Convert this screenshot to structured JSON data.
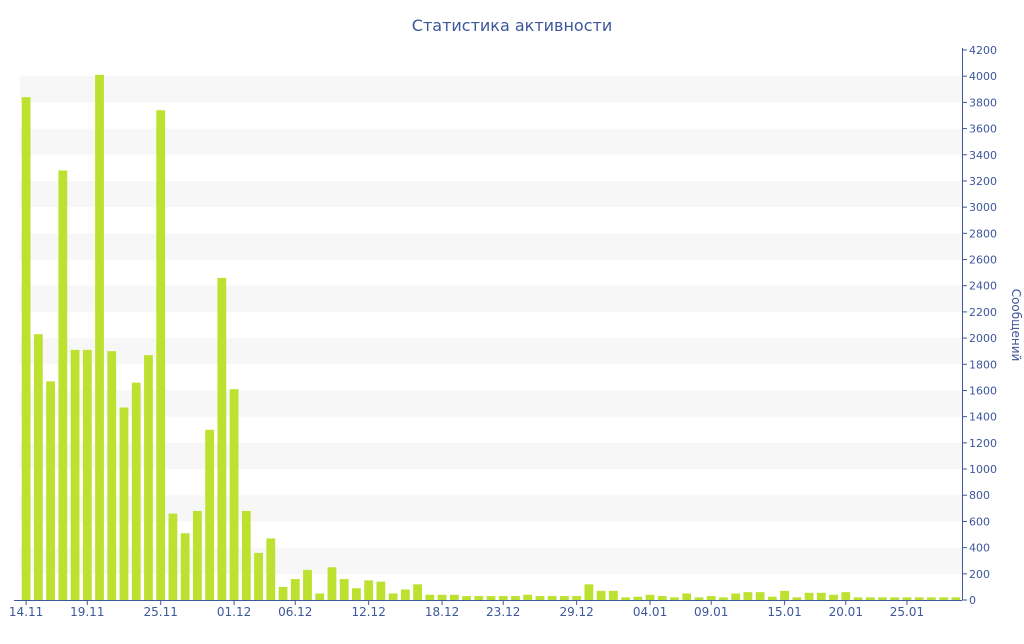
{
  "chart_data": {
    "type": "bar",
    "title": "Статистика активности",
    "ylabel": "Сообщений",
    "xlabel": "",
    "ylim": [
      0,
      4200
    ],
    "yticks": [
      0,
      200,
      400,
      600,
      800,
      1000,
      1200,
      1400,
      1600,
      1800,
      2000,
      2200,
      2400,
      2600,
      2800,
      3000,
      3200,
      3400,
      3600,
      3800,
      4000,
      4200
    ],
    "y_axis_position": "right",
    "grid": "alternating horizontal bands",
    "legend": "none",
    "bar_color": "#bde131",
    "axis_color": "#3d579b",
    "band_color": "#f7f7f7",
    "categories": [
      "14.11",
      "15.11",
      "16.11",
      "17.11",
      "18.11",
      "19.11",
      "20.11",
      "21.11",
      "22.11",
      "23.11",
      "24.11",
      "25.11",
      "26.11",
      "27.11",
      "28.11",
      "29.11",
      "30.11",
      "01.12",
      "02.12",
      "03.12",
      "04.12",
      "05.12",
      "06.12",
      "07.12",
      "08.12",
      "09.12",
      "10.12",
      "11.12",
      "12.12",
      "13.12",
      "14.12",
      "15.12",
      "16.12",
      "17.12",
      "18.12",
      "19.12",
      "20.12",
      "21.12",
      "22.12",
      "23.12",
      "24.12",
      "25.12",
      "26.12",
      "27.12",
      "28.12",
      "29.12",
      "30.12",
      "31.12",
      "01.01",
      "02.01",
      "03.01",
      "04.01",
      "05.01",
      "06.01",
      "07.01",
      "08.01",
      "09.01",
      "10.01",
      "11.01",
      "12.01",
      "13.01",
      "14.01",
      "15.01",
      "16.01",
      "17.01",
      "18.01",
      "19.01",
      "20.01",
      "21.01",
      "22.01",
      "23.01",
      "24.01",
      "25.01",
      "26.01",
      "27.01",
      "28.01",
      "29.01"
    ],
    "tick_labels": [
      "14.11",
      "19.11",
      "25.11",
      "01.12",
      "06.12",
      "12.12",
      "18.12",
      "23.12",
      "29.12",
      "04.01",
      "09.01",
      "15.01",
      "20.01",
      "25.01"
    ],
    "values": [
      3840,
      2030,
      1670,
      3280,
      1910,
      1910,
      4010,
      1900,
      1470,
      1660,
      1870,
      3740,
      660,
      510,
      680,
      1300,
      2460,
      1610,
      680,
      360,
      470,
      100,
      160,
      230,
      50,
      250,
      160,
      90,
      150,
      140,
      50,
      80,
      120,
      40,
      40,
      40,
      30,
      30,
      30,
      30,
      30,
      40,
      30,
      30,
      30,
      30,
      120,
      70,
      70,
      20,
      25,
      40,
      30,
      20,
      50,
      20,
      30,
      20,
      50,
      60,
      60,
      25,
      70,
      20,
      55,
      55,
      40,
      60,
      20,
      20,
      20,
      20,
      20,
      20,
      20,
      20,
      20
    ]
  }
}
